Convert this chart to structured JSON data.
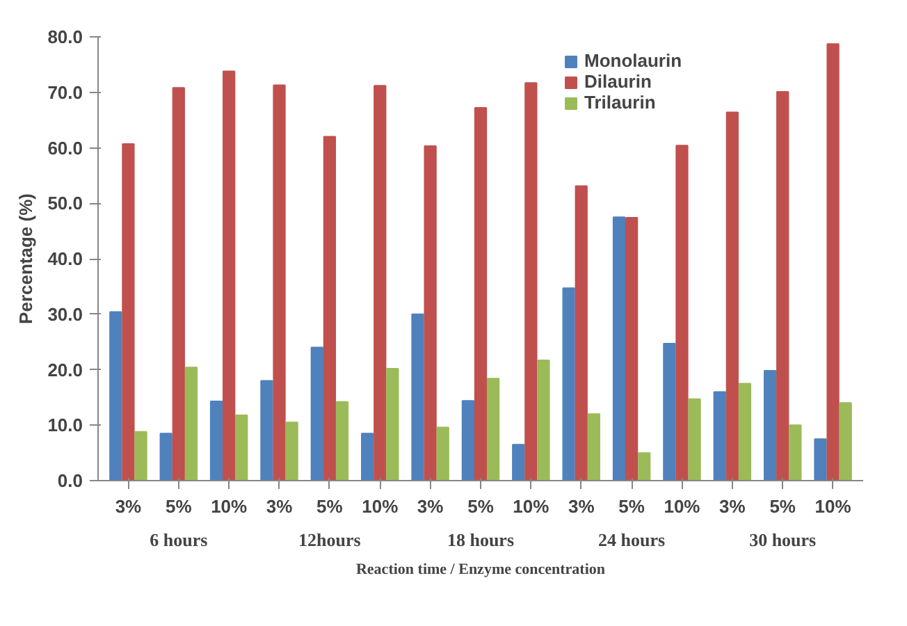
{
  "chart_data": {
    "type": "bar",
    "xlabel": "Reaction time / Enzyme concentration",
    "ylabel": "Percentage (%)",
    "categories": [
      "3%",
      "5%",
      "10%",
      "3%",
      "5%",
      "10%",
      "3%",
      "5%",
      "10%",
      "3%",
      "5%",
      "10%",
      "3%",
      "5%",
      "10%"
    ],
    "series": [
      {
        "name": "Monolaurin",
        "color": "#4f81bd",
        "values": [
          30.4,
          8.5,
          14.3,
          18.0,
          24.0,
          8.5,
          30.0,
          14.4,
          6.5,
          34.7,
          47.5,
          24.7,
          16.0,
          19.8,
          7.5
        ]
      },
      {
        "name": "Dilaurin",
        "color": "#c0504d",
        "values": [
          60.7,
          70.8,
          73.8,
          71.3,
          62.0,
          71.2,
          60.3,
          67.2,
          71.7,
          53.1,
          47.4,
          60.4,
          66.4,
          70.1,
          78.7
        ]
      },
      {
        "name": "Trilaurin",
        "color": "#9bbb59",
        "values": [
          8.8,
          20.4,
          11.8,
          10.5,
          14.2,
          20.2,
          9.6,
          18.4,
          21.7,
          12.0,
          5.0,
          14.7,
          17.5,
          10.0,
          14.0
        ]
      }
    ],
    "annotations": [
      "6 hours",
      "12hours",
      "18 hours",
      "24 hours",
      "30 hours"
    ],
    "ylim": [
      0,
      80
    ],
    "yticks": [
      {
        "value": 0,
        "label": "0.0"
      },
      {
        "value": 10,
        "label": "10.0"
      },
      {
        "value": 20,
        "label": "20.0"
      },
      {
        "value": 30,
        "label": "30.0"
      },
      {
        "value": 40,
        "label": "40.0"
      },
      {
        "value": 50,
        "label": "50.0"
      },
      {
        "value": 60,
        "label": "60.0"
      },
      {
        "value": 70,
        "label": "70.0"
      },
      {
        "value": 80,
        "label": "80.0"
      }
    ],
    "legend": "top right",
    "grid": false
  }
}
